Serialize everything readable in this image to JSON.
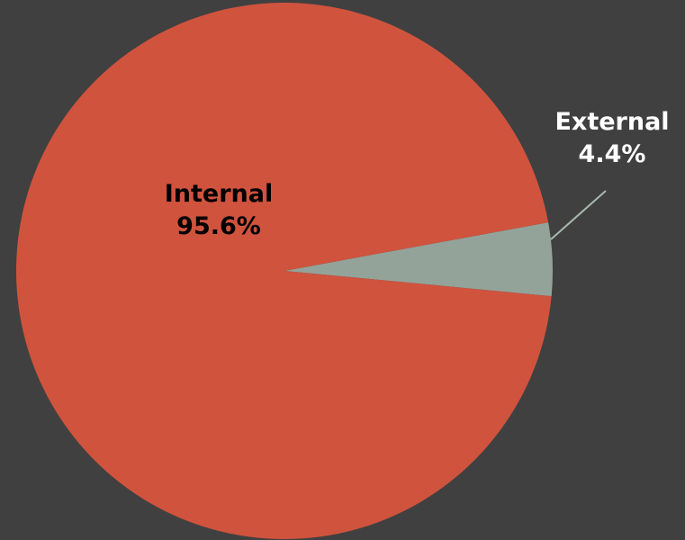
{
  "chart_data": {
    "type": "pie",
    "categories": [
      "Internal",
      "External"
    ],
    "values": [
      95.6,
      4.4
    ],
    "value_labels": [
      "95.6%",
      "4.4%"
    ],
    "colors": [
      "#D0533E",
      "#93A39A"
    ],
    "background": "#404040",
    "leader_line_color": "#A9B8AF",
    "label_colors": [
      "#000000",
      "#FFFFFF"
    ]
  }
}
